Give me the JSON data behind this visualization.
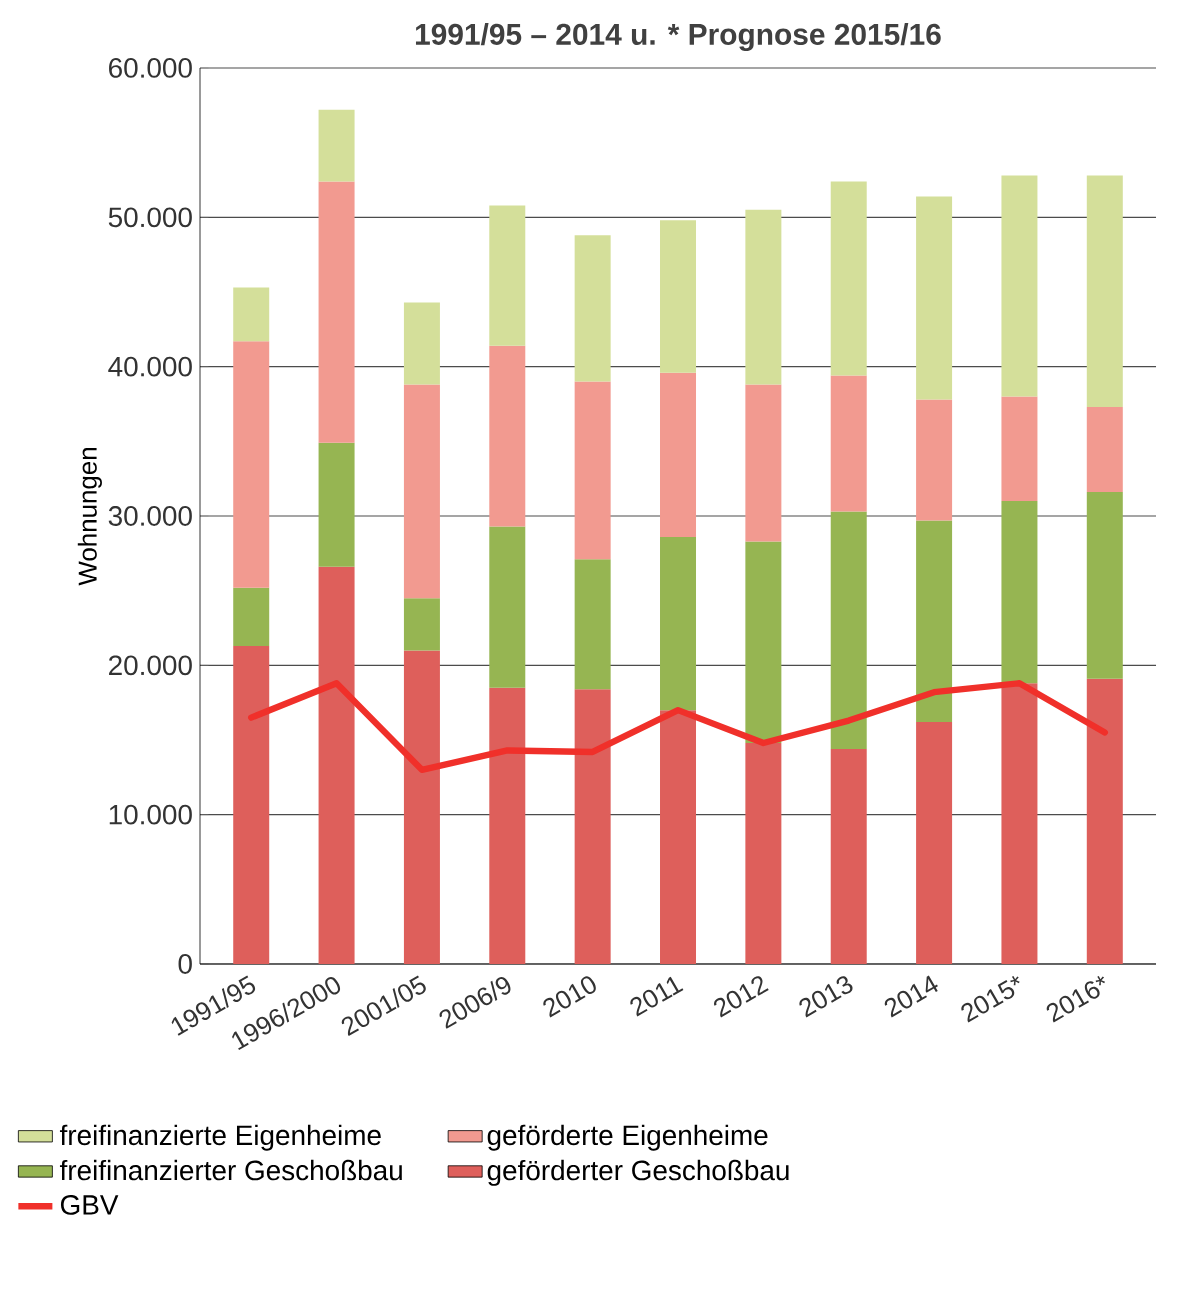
{
  "chart_data": {
    "type": "bar",
    "stacked": true,
    "title": "1991/95 – 2014 u. * Prognose 2015/16",
    "ylabel": "Wohnungen",
    "categories": [
      "1991/95",
      "1996/2000",
      "2001/05",
      "2006/9",
      "2010",
      "2011",
      "2012",
      "2013",
      "2014",
      "2015*",
      "2016*"
    ],
    "series": [
      {
        "name": "geförderter Geschoßbau",
        "color": "#de5f5b",
        "values": [
          21300,
          26600,
          21000,
          18500,
          18400,
          17000,
          14800,
          14400,
          16200,
          18800,
          19100
        ]
      },
      {
        "name": "freifinanzierter Geschoßbau",
        "color": "#96b552",
        "values": [
          3900,
          8300,
          3500,
          10800,
          8700,
          11600,
          13500,
          15900,
          13500,
          12200,
          12500
        ]
      },
      {
        "name": "geförderte Eigenheime",
        "color": "#f29a90",
        "values": [
          16500,
          17500,
          14300,
          12100,
          11900,
          11000,
          10500,
          9100,
          8100,
          7000,
          5700
        ]
      },
      {
        "name": "freifinanzierte Eigenheime",
        "color": "#d4df9a",
        "values": [
          3600,
          4800,
          5500,
          9400,
          9800,
          10200,
          11700,
          13000,
          13600,
          14800,
          15500
        ]
      },
      {
        "name": "GBV",
        "type": "line",
        "color": "#f0302a",
        "values": [
          16500,
          18800,
          13000,
          14300,
          14200,
          17000,
          14800,
          16300,
          18200,
          18800,
          15500
        ]
      }
    ],
    "ylim": [
      0,
      60000
    ],
    "yticks": [
      {
        "value": 0,
        "label": "0"
      },
      {
        "value": 10000,
        "label": "10.000"
      },
      {
        "value": 20000,
        "label": "20.000"
      },
      {
        "value": 30000,
        "label": "30.000"
      },
      {
        "value": 40000,
        "label": "40.000"
      },
      {
        "value": 50000,
        "label": "50.000"
      },
      {
        "value": 60000,
        "label": "60.000"
      }
    ],
    "grid": "y",
    "legend": "bottom"
  }
}
